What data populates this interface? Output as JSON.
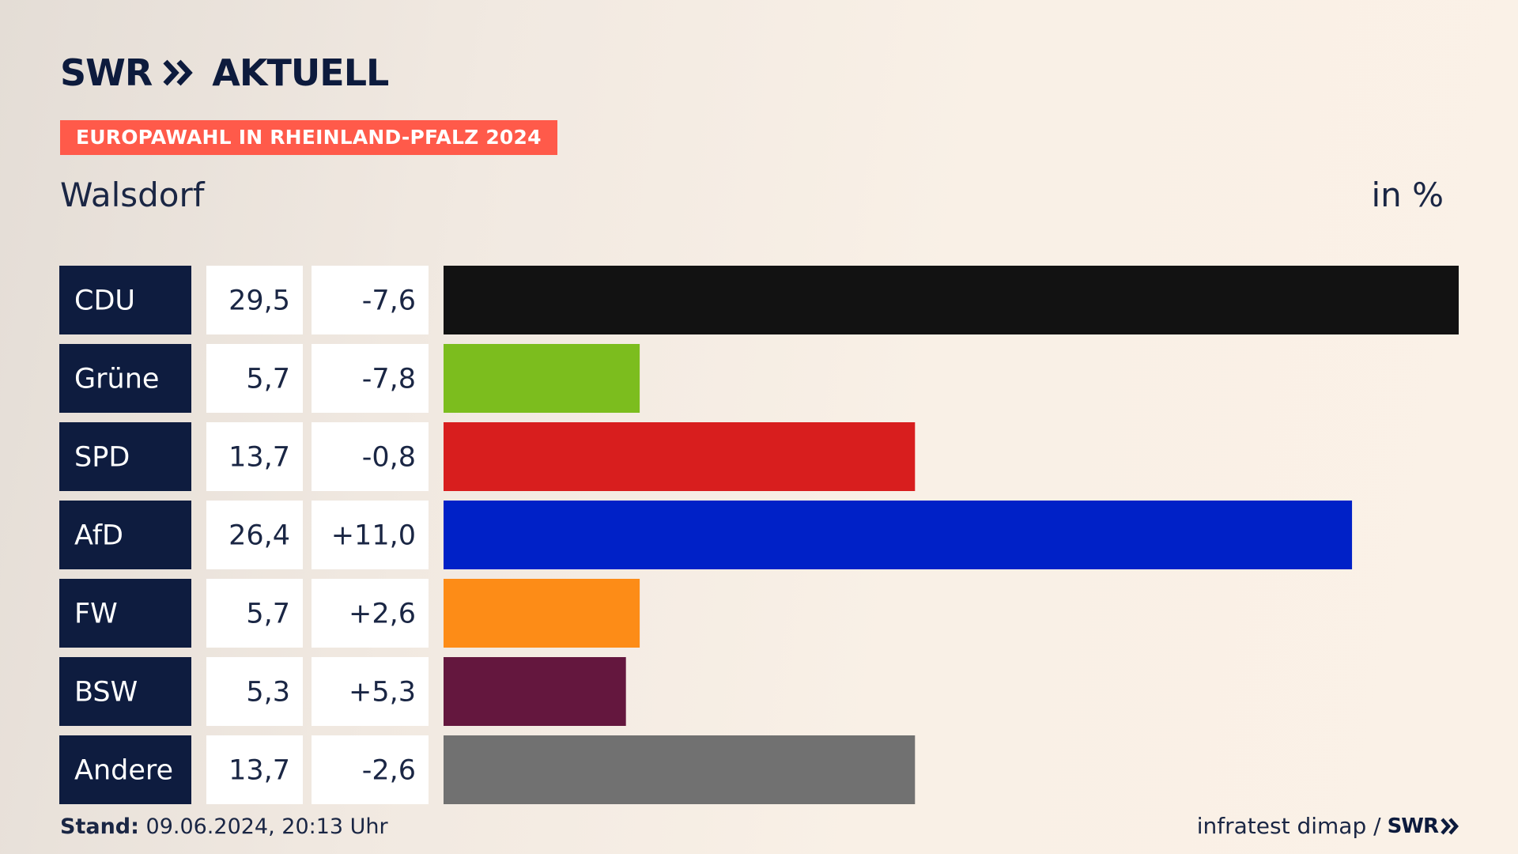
{
  "header": {
    "brand": "SWR",
    "product": "AKTUELL",
    "badge": "EUROPAWAHL IN RHEINLAND-PFALZ 2024",
    "place": "Walsdorf",
    "unit": "in %"
  },
  "footer": {
    "stand_label": "Stand:",
    "stand_value": "09.06.2024, 20:13 Uhr",
    "source": "infratest dimap /",
    "source_brand": "SWR"
  },
  "chart_data": {
    "type": "bar",
    "orientation": "horizontal",
    "categories": [
      "CDU",
      "Grüne",
      "SPD",
      "AfD",
      "FW",
      "BSW",
      "Andere"
    ],
    "values": [
      29.5,
      5.7,
      13.7,
      26.4,
      5.7,
      5.3,
      13.7
    ],
    "value_labels": [
      "29,5",
      "5,7",
      "13,7",
      "26,4",
      "5,7",
      "5,3",
      "13,7"
    ],
    "changes": [
      -7.6,
      -7.8,
      -0.8,
      11.0,
      2.6,
      5.3,
      -2.6
    ],
    "change_labels": [
      "-7,6",
      "-7,8",
      "-0,8",
      "+11,0",
      "+2,6",
      "+5,3",
      "-2,6"
    ],
    "colors": [
      "#121212",
      "#7cbd1e",
      "#d81e1e",
      "#0021c7",
      "#fd8c17",
      "#64173e",
      "#717171"
    ],
    "xlim": [
      0,
      29.5
    ],
    "grid": false,
    "legend": "none"
  }
}
